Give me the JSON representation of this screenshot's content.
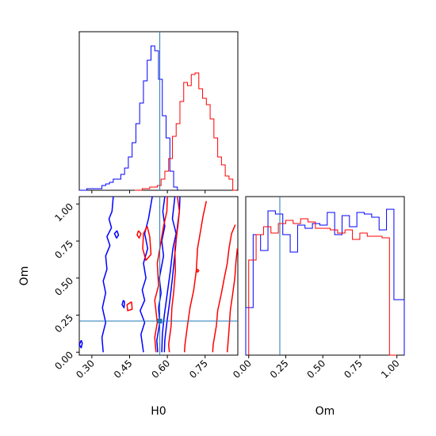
{
  "chart_data": [
    {
      "type": "histogram",
      "panel": "H0-marginal",
      "xlim": [
        0.25,
        0.88
      ],
      "ylim": [
        0,
        1
      ],
      "truth": 0.57,
      "x_ticks": [
        0.3,
        0.45,
        0.6,
        0.75
      ],
      "series": [
        {
          "color": "#0000ff",
          "bins": [
            0.25,
            0.265,
            0.28,
            0.295,
            0.31,
            0.325,
            0.34,
            0.355,
            0.37,
            0.385,
            0.4,
            0.415,
            0.43,
            0.445,
            0.46,
            0.475,
            0.49,
            0.505,
            0.52,
            0.535,
            0.55,
            0.565,
            0.58,
            0.595,
            0.61,
            0.625,
            0.64
          ],
          "values": [
            0.0,
            0.0,
            0.01,
            0.01,
            0.01,
            0.01,
            0.03,
            0.04,
            0.05,
            0.07,
            0.07,
            0.1,
            0.14,
            0.21,
            0.3,
            0.42,
            0.55,
            0.69,
            0.82,
            0.91,
            0.88,
            0.7,
            0.47,
            0.33,
            0.12,
            0.02
          ]
        },
        {
          "color": "#ff0000",
          "bins": [
            0.47,
            0.485,
            0.5,
            0.515,
            0.53,
            0.545,
            0.56,
            0.575,
            0.59,
            0.605,
            0.62,
            0.635,
            0.65,
            0.665,
            0.68,
            0.695,
            0.71,
            0.725,
            0.74,
            0.755,
            0.77,
            0.785,
            0.8,
            0.815,
            0.83,
            0.845,
            0.86,
            0.875
          ],
          "values": [
            0.0,
            0.0,
            0.01,
            0.01,
            0.02,
            0.02,
            0.03,
            0.07,
            0.12,
            0.2,
            0.34,
            0.42,
            0.56,
            0.68,
            0.66,
            0.73,
            0.74,
            0.64,
            0.58,
            0.54,
            0.45,
            0.33,
            0.21,
            0.16,
            0.09,
            0.07,
            0.0
          ]
        }
      ]
    },
    {
      "type": "contour",
      "panel": "H0-Om",
      "xlabel": "H0",
      "ylabel": "Om",
      "xlim": [
        0.25,
        0.88
      ],
      "ylim": [
        -0.02,
        1.05
      ],
      "truth": [
        0.57,
        0.21
      ],
      "x_ticks": [
        0.3,
        0.45,
        0.6,
        0.75
      ],
      "y_ticks": [
        0.0,
        0.25,
        0.5,
        0.75,
        1.0
      ],
      "series": [
        {
          "color": "#0000ff",
          "contours": [
            [
              [
                0.385,
                1.05
              ],
              [
                0.38,
                0.95
              ],
              [
                0.368,
                0.9
              ],
              [
                0.378,
                0.84
              ],
              [
                0.36,
                0.78
              ],
              [
                0.372,
                0.72
              ],
              [
                0.355,
                0.65
              ],
              [
                0.36,
                0.56
              ],
              [
                0.345,
                0.48
              ],
              [
                0.355,
                0.4
              ],
              [
                0.342,
                0.3
              ],
              [
                0.355,
                0.2
              ],
              [
                0.34,
                0.1
              ],
              [
                0.345,
                0.0
              ]
            ],
            [
              [
                0.258,
                0.08
              ],
              [
                0.25,
                0.05
              ],
              [
                0.258,
                0.03
              ],
              [
                0.262,
                0.06
              ],
              [
                0.258,
                0.08
              ]
            ],
            [
              [
                0.54,
                1.05
              ],
              [
                0.525,
                0.9
              ],
              [
                0.51,
                0.8
              ],
              [
                0.522,
                0.7
              ],
              [
                0.505,
                0.6
              ],
              [
                0.515,
                0.5
              ],
              [
                0.5,
                0.42
              ],
              [
                0.51,
                0.35
              ],
              [
                0.492,
                0.28
              ],
              [
                0.51,
                0.2
              ],
              [
                0.495,
                0.12
              ],
              [
                0.505,
                0.0
              ]
            ],
            [
              [
                0.59,
                1.05
              ],
              [
                0.582,
                0.95
              ],
              [
                0.59,
                0.85
              ],
              [
                0.578,
                0.75
              ],
              [
                0.585,
                0.65
              ],
              [
                0.568,
                0.5
              ],
              [
                0.575,
                0.4
              ],
              [
                0.565,
                0.3
              ],
              [
                0.57,
                0.2
              ],
              [
                0.558,
                0.08
              ],
              [
                0.562,
                0.0
              ]
            ],
            [
              [
                0.63,
                1.05
              ],
              [
                0.62,
                0.9
              ],
              [
                0.635,
                0.8
              ],
              [
                0.622,
                0.7
              ],
              [
                0.612,
                0.55
              ],
              [
                0.6,
                0.4
              ],
              [
                0.588,
                0.25
              ],
              [
                0.58,
                0.12
              ],
              [
                0.578,
                0.0
              ]
            ],
            [
              [
                0.65,
                1.05
              ],
              [
                0.648,
                0.95
              ],
              [
                0.64,
                0.85
              ],
              [
                0.632,
                0.7
              ],
              [
                0.62,
                0.5
              ],
              [
                0.61,
                0.35
              ],
              [
                0.598,
                0.2
              ],
              [
                0.59,
                0.08
              ],
              [
                0.588,
                0.0
              ]
            ],
            [
              [
                0.4,
                0.82
              ],
              [
                0.39,
                0.8
              ],
              [
                0.398,
                0.77
              ],
              [
                0.406,
                0.79
              ],
              [
                0.4,
                0.82
              ]
            ],
            [
              [
                0.425,
                0.35
              ],
              [
                0.42,
                0.32
              ],
              [
                0.428,
                0.3
              ],
              [
                0.43,
                0.34
              ],
              [
                0.425,
                0.35
              ]
            ]
          ]
        },
        {
          "color": "#ff0000",
          "contours": [
            [
              [
                0.6,
                1.05
              ],
              [
                0.598,
                0.95
              ],
              [
                0.585,
                0.85
              ],
              [
                0.575,
                0.75
              ],
              [
                0.56,
                0.6
              ],
              [
                0.565,
                0.45
              ],
              [
                0.55,
                0.35
              ],
              [
                0.56,
                0.2
              ],
              [
                0.55,
                0.1
              ],
              [
                0.555,
                0.0
              ]
            ],
            [
              [
                0.64,
                1.05
              ],
              [
                0.648,
                0.95
              ],
              [
                0.642,
                0.85
              ],
              [
                0.63,
                0.7
              ],
              [
                0.632,
                0.55
              ],
              [
                0.625,
                0.4
              ],
              [
                0.618,
                0.3
              ],
              [
                0.615,
                0.18
              ],
              [
                0.605,
                0.05
              ],
              [
                0.608,
                0.0
              ]
            ],
            [
              [
                0.755,
                1.02
              ],
              [
                0.742,
                0.92
              ],
              [
                0.73,
                0.8
              ],
              [
                0.72,
                0.7
              ],
              [
                0.715,
                0.55
              ],
              [
                0.705,
                0.42
              ],
              [
                0.69,
                0.3
              ],
              [
                0.68,
                0.18
              ],
              [
                0.67,
                0.05
              ],
              [
                0.668,
                0.0
              ]
            ],
            [
              [
                0.87,
                0.86
              ],
              [
                0.855,
                0.8
              ],
              [
                0.845,
                0.7
              ],
              [
                0.838,
                0.6
              ],
              [
                0.826,
                0.5
              ],
              [
                0.815,
                0.4
              ],
              [
                0.8,
                0.28
              ],
              [
                0.795,
                0.18
              ],
              [
                0.782,
                0.05
              ],
              [
                0.78,
                0.0
              ]
            ],
            [
              [
                0.878,
                0.7
              ],
              [
                0.872,
                0.6
              ],
              [
                0.868,
                0.5
              ],
              [
                0.86,
                0.4
              ],
              [
                0.85,
                0.28
              ],
              [
                0.845,
                0.15
              ],
              [
                0.838,
                0.0
              ]
            ],
            [
              [
                0.52,
                0.85
              ],
              [
                0.505,
                0.8
              ],
              [
                0.502,
                0.7
              ],
              [
                0.515,
                0.62
              ],
              [
                0.535,
                0.66
              ],
              [
                0.53,
                0.78
              ],
              [
                0.52,
                0.85
              ]
            ],
            [
              [
                0.485,
                0.82
              ],
              [
                0.48,
                0.79
              ],
              [
                0.488,
                0.77
              ],
              [
                0.495,
                0.8
              ],
              [
                0.485,
                0.82
              ]
            ],
            [
              [
                0.458,
                0.34
              ],
              [
                0.44,
                0.32
              ],
              [
                0.442,
                0.28
              ],
              [
                0.46,
                0.29
              ],
              [
                0.458,
                0.34
              ]
            ],
            [
              [
                0.72,
                0.56
              ],
              [
                0.715,
                0.55
              ],
              [
                0.72,
                0.54
              ],
              [
                0.725,
                0.55
              ],
              [
                0.72,
                0.56
              ]
            ]
          ]
        }
      ]
    },
    {
      "type": "histogram",
      "panel": "Om-marginal",
      "xlabel": "Om",
      "xlim": [
        -0.02,
        1.05
      ],
      "ylim": [
        0,
        1
      ],
      "truth": 0.21,
      "x_ticks": [
        0.0,
        0.25,
        0.5,
        0.75,
        1.0
      ],
      "series": [
        {
          "color": "#0000ff",
          "bins": [
            -0.02,
            0.03,
            0.08,
            0.13,
            0.18,
            0.23,
            0.28,
            0.33,
            0.38,
            0.43,
            0.48,
            0.53,
            0.58,
            0.63,
            0.68,
            0.73,
            0.78,
            0.83,
            0.88,
            0.93,
            0.98,
            1.03,
            1.05
          ],
          "values": [
            0.3,
            0.76,
            0.66,
            0.91,
            0.89,
            0.76,
            0.65,
            0.82,
            0.8,
            0.83,
            0.82,
            0.9,
            0.76,
            0.88,
            0.81,
            0.9,
            0.89,
            0.87,
            0.79,
            0.92,
            0.35,
            0.35
          ]
        },
        {
          "color": "#ff0000",
          "bins": [
            0.0,
            0.05,
            0.1,
            0.15,
            0.2,
            0.25,
            0.3,
            0.35,
            0.4,
            0.45,
            0.5,
            0.55,
            0.6,
            0.65,
            0.7,
            0.75,
            0.8,
            0.85,
            0.9,
            0.95,
            1.0
          ],
          "values": [
            0.6,
            0.76,
            0.81,
            0.77,
            0.83,
            0.85,
            0.83,
            0.86,
            0.84,
            0.8,
            0.8,
            0.79,
            0.77,
            0.79,
            0.73,
            0.77,
            0.75,
            0.75,
            0.74,
            0.0
          ]
        }
      ]
    }
  ],
  "colors": {
    "truth": "#1f77b4",
    "series_a": "#0000ff",
    "series_b": "#ff0000",
    "axes": "#000000"
  }
}
